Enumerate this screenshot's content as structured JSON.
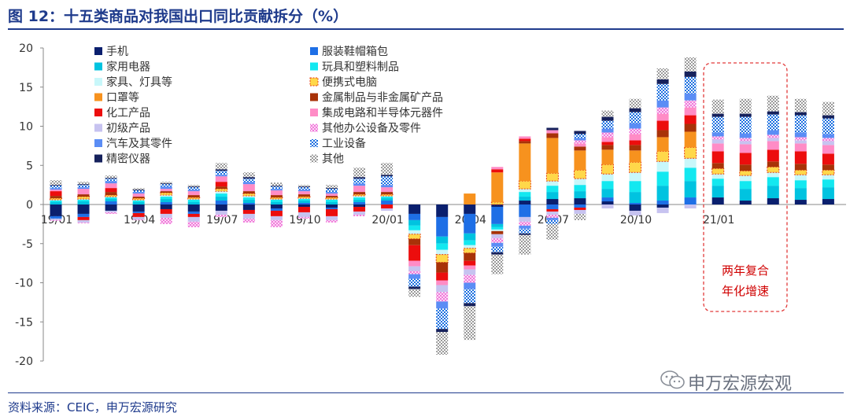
{
  "title": "图 12：十五类商品对我国出口同比贡献拆分（%）",
  "source": "资料来源：CEIC，申万宏源研究",
  "watermark": "申万宏源宏观",
  "note": [
    "两年复合",
    "年化增速"
  ],
  "chart_data": {
    "type": "bar",
    "stacked": true,
    "ylim": [
      -20,
      20
    ],
    "yticks": [
      20,
      15,
      10,
      5,
      0,
      -5,
      -10,
      -15,
      -20
    ],
    "x_tick_labels": [
      "19/01",
      "19/04",
      "19/07",
      "19/10",
      "20/01",
      "20/04",
      "20/07",
      "20/10",
      "21/01"
    ],
    "x_tick_indices": [
      0,
      3,
      6,
      9,
      12,
      15,
      18,
      21,
      24
    ],
    "categories": [
      "19/01",
      "19/02",
      "19/03",
      "19/04",
      "19/05",
      "19/06",
      "19/07",
      "19/08",
      "19/09",
      "19/10",
      "19/11",
      "19/12",
      "20/01",
      "20/02",
      "20/03",
      "20/04",
      "20/05",
      "20/06",
      "20/07",
      "20/08",
      "20/09",
      "20/10",
      "20/11",
      "20/12",
      "21/01",
      "21/02",
      "21/03",
      "21/04",
      "21/05"
    ],
    "series": [
      {
        "name": "手机",
        "color": "#0a1f6e",
        "pattern": "solid",
        "values": [
          -1.5,
          -1.2,
          -0.8,
          -0.9,
          -0.6,
          -0.9,
          -0.8,
          -0.7,
          -0.5,
          -0.3,
          -0.4,
          -0.3,
          0,
          -1.2,
          -1.6,
          -1.2,
          -0.3,
          0.5,
          0.7,
          0.8,
          0.4,
          -0.8,
          -0.4,
          0,
          0.9,
          0.5,
          0.8,
          0.6,
          0.7
        ]
      },
      {
        "name": "服装鞋帽箱包",
        "color": "#1e6fe6",
        "pattern": "solid",
        "values": [
          -0.3,
          -0.4,
          0.4,
          -0.2,
          0.3,
          -0.3,
          0.5,
          0.2,
          -0.3,
          0.2,
          -0.2,
          0.3,
          0.5,
          -0.8,
          -2.5,
          -2.5,
          -2.2,
          -1.6,
          -0.6,
          -0.4,
          0.5,
          0.2,
          0.5,
          0.9,
          0,
          0,
          0,
          0,
          0
        ]
      },
      {
        "name": "家用电器",
        "color": "#00c3e0",
        "pattern": "solid",
        "values": [
          0.3,
          0.4,
          0.3,
          0.3,
          0.4,
          0.3,
          0.5,
          0.4,
          0.3,
          0.3,
          0.3,
          0.3,
          0.3,
          -0.7,
          -0.9,
          -0.9,
          -0.4,
          0.5,
          0.9,
          0.9,
          1.1,
          1.4,
          1.9,
          2.1,
          1.5,
          1.5,
          1.6,
          1.5,
          1.5
        ]
      },
      {
        "name": "玩具和塑料制品",
        "color": "#13e8f0",
        "pattern": "solid",
        "values": [
          0.2,
          0.2,
          0.2,
          0.2,
          0.3,
          0.3,
          0.4,
          0.3,
          0.3,
          0.2,
          0.3,
          0.3,
          0.2,
          -0.6,
          -0.8,
          -0.6,
          -0.3,
          0.6,
          0.8,
          0.8,
          1.0,
          1.4,
          1.8,
          1.7,
          0.9,
          1.0,
          1.1,
          1.0,
          1.0
        ]
      },
      {
        "name": "家具、灯具等",
        "color": "#c8f7fa",
        "pattern": "solid",
        "values": [
          0.1,
          0.1,
          0.1,
          0.1,
          0.2,
          0.1,
          0.3,
          0.2,
          0.1,
          0.1,
          0.1,
          0.2,
          0.1,
          -0.5,
          -0.6,
          -0.4,
          -0.2,
          0.4,
          0.6,
          0.8,
          0.9,
          1.1,
          1.3,
          1.2,
          0.6,
          0.7,
          0.6,
          0.7,
          0.6
        ]
      },
      {
        "name": "便携式电脑",
        "color": "#ffd84a",
        "pattern": "dashed",
        "values": [
          0.2,
          0.3,
          0.2,
          0.2,
          0.3,
          0.2,
          0.3,
          0.3,
          0.2,
          0.2,
          0.2,
          0.2,
          0.2,
          -0.6,
          -1.0,
          -0.6,
          0.3,
          1.0,
          1.0,
          1.1,
          1.2,
          1.3,
          1.3,
          1.4,
          0.7,
          0.6,
          0.7,
          0.6,
          0.6
        ]
      },
      {
        "name": "口罩等",
        "color": "#f7921e",
        "pattern": "solid",
        "values": [
          0,
          0,
          0,
          0,
          0,
          0,
          0,
          0,
          0,
          0,
          0,
          0,
          0,
          0,
          0,
          1.4,
          3.8,
          4.8,
          4.5,
          2.5,
          1.9,
          1.5,
          1.8,
          2.0,
          0,
          0,
          0,
          0,
          0
        ]
      },
      {
        "name": "金属制品与非金属矿产品",
        "color": "#a83208",
        "pattern": "solid",
        "values": [
          0.3,
          0.3,
          0.4,
          0.2,
          0.2,
          0.3,
          0.3,
          0.3,
          0.3,
          0.3,
          0.2,
          0.3,
          0.3,
          -0.8,
          -1.3,
          -1.0,
          -0.4,
          0.3,
          0.6,
          0.5,
          0.6,
          0.7,
          0.9,
          1.0,
          0.7,
          0.8,
          0.7,
          0.8,
          0.7
        ]
      },
      {
        "name": "化工产品",
        "color": "#ec0d0d",
        "pattern": "solid",
        "values": [
          0.6,
          -0.4,
          0.5,
          -0.5,
          -0.6,
          -0.4,
          0.6,
          -0.5,
          -0.7,
          -0.7,
          -0.9,
          -0.6,
          -0.5,
          -2.0,
          -1.0,
          -0.6,
          0.4,
          0.3,
          -0.3,
          -0.3,
          0.4,
          0.6,
          1.2,
          1.1,
          1.5,
          1.5,
          1.5,
          1.6,
          1.4
        ]
      },
      {
        "name": "集成电路和半导体元器件",
        "color": "#ff8cc6",
        "pattern": "solid",
        "values": [
          0.2,
          0.7,
          0.6,
          0.4,
          0.3,
          0.5,
          0.7,
          0.9,
          0.6,
          0.4,
          0.3,
          0.8,
          0.6,
          -0.7,
          -0.6,
          -0.5,
          0.3,
          0.3,
          0.4,
          0.4,
          0.6,
          0.8,
          0.9,
          1.0,
          1.0,
          1.1,
          1.1,
          1.0,
          1.1
        ]
      },
      {
        "name": "初级产品",
        "color": "#c7c3f0",
        "pattern": "solid",
        "values": [
          -0.2,
          -0.3,
          -0.2,
          -0.3,
          -0.5,
          -0.6,
          -0.5,
          -0.6,
          -0.5,
          -0.6,
          -0.5,
          -0.4,
          -0.3,
          -0.6,
          -0.9,
          -0.7,
          -0.5,
          -0.6,
          -0.4,
          -0.5,
          -0.5,
          -0.6,
          -0.7,
          -0.5,
          0.5,
          0.4,
          0.4,
          0.4,
          0.5
        ]
      },
      {
        "name": "其他办公设备及零件",
        "color": "#f06fd8",
        "pattern": "crosses",
        "values": [
          -0.1,
          -0.1,
          -0.2,
          -0.1,
          -0.8,
          -0.7,
          -0.3,
          -0.5,
          -0.9,
          -0.2,
          -0.3,
          -0.2,
          0,
          -0.4,
          -1.2,
          -1.0,
          -0.6,
          -0.5,
          -0.4,
          0.4,
          0.6,
          0.7,
          0.8,
          0.9,
          0.4,
          0.4,
          0.4,
          0.4,
          0.4
        ]
      },
      {
        "name": "汽车及其零件",
        "color": "#5b8df5",
        "pattern": "solid",
        "values": [
          0.2,
          0.2,
          0.3,
          0.2,
          0.3,
          0.2,
          0.2,
          0.3,
          0.2,
          0.2,
          0.2,
          0.3,
          0.3,
          -0.6,
          -0.9,
          -0.8,
          -0.5,
          -0.4,
          -0.3,
          0.3,
          0.5,
          0.7,
          0.9,
          0.9,
          0.5,
          0.6,
          0.6,
          0.6,
          0.5
        ]
      },
      {
        "name": "工业设备",
        "color": "#1a6fe0",
        "pattern": "checks",
        "values": [
          0.3,
          0.3,
          0.3,
          0.2,
          0.3,
          0.3,
          0.5,
          0.4,
          0.3,
          0.3,
          0.4,
          0.6,
          1.1,
          -1.0,
          -2.6,
          -1.8,
          -0.7,
          -0.6,
          -0.5,
          0.5,
          1.0,
          1.4,
          2.1,
          2.1,
          2.0,
          2.1,
          2.0,
          2.2,
          2.0
        ]
      },
      {
        "name": "精密仪器",
        "color": "#16215c",
        "pattern": "solid",
        "values": [
          0.1,
          0.1,
          0.1,
          0.1,
          0.1,
          0.1,
          0.2,
          0.2,
          0.1,
          0.1,
          0.1,
          0.2,
          0.2,
          -0.3,
          -0.4,
          -0.4,
          -0.3,
          -0.2,
          0.3,
          0.4,
          0.5,
          0.5,
          0.6,
          0.7,
          0.4,
          0.4,
          0.4,
          0.4,
          0.4
        ]
      },
      {
        "name": "其他",
        "color": "#9a9a9a",
        "pattern": "checker",
        "values": [
          0.6,
          0.3,
          0.3,
          0.2,
          0.2,
          0.2,
          0.8,
          0.6,
          0.4,
          0.2,
          0.4,
          1.2,
          1.5,
          -1.0,
          -2.9,
          -4.3,
          -2.5,
          -2.5,
          -2.0,
          -0.8,
          0.8,
          1.2,
          1.4,
          1.8,
          1.8,
          1.9,
          2.0,
          1.7,
          1.7
        ]
      }
    ]
  }
}
